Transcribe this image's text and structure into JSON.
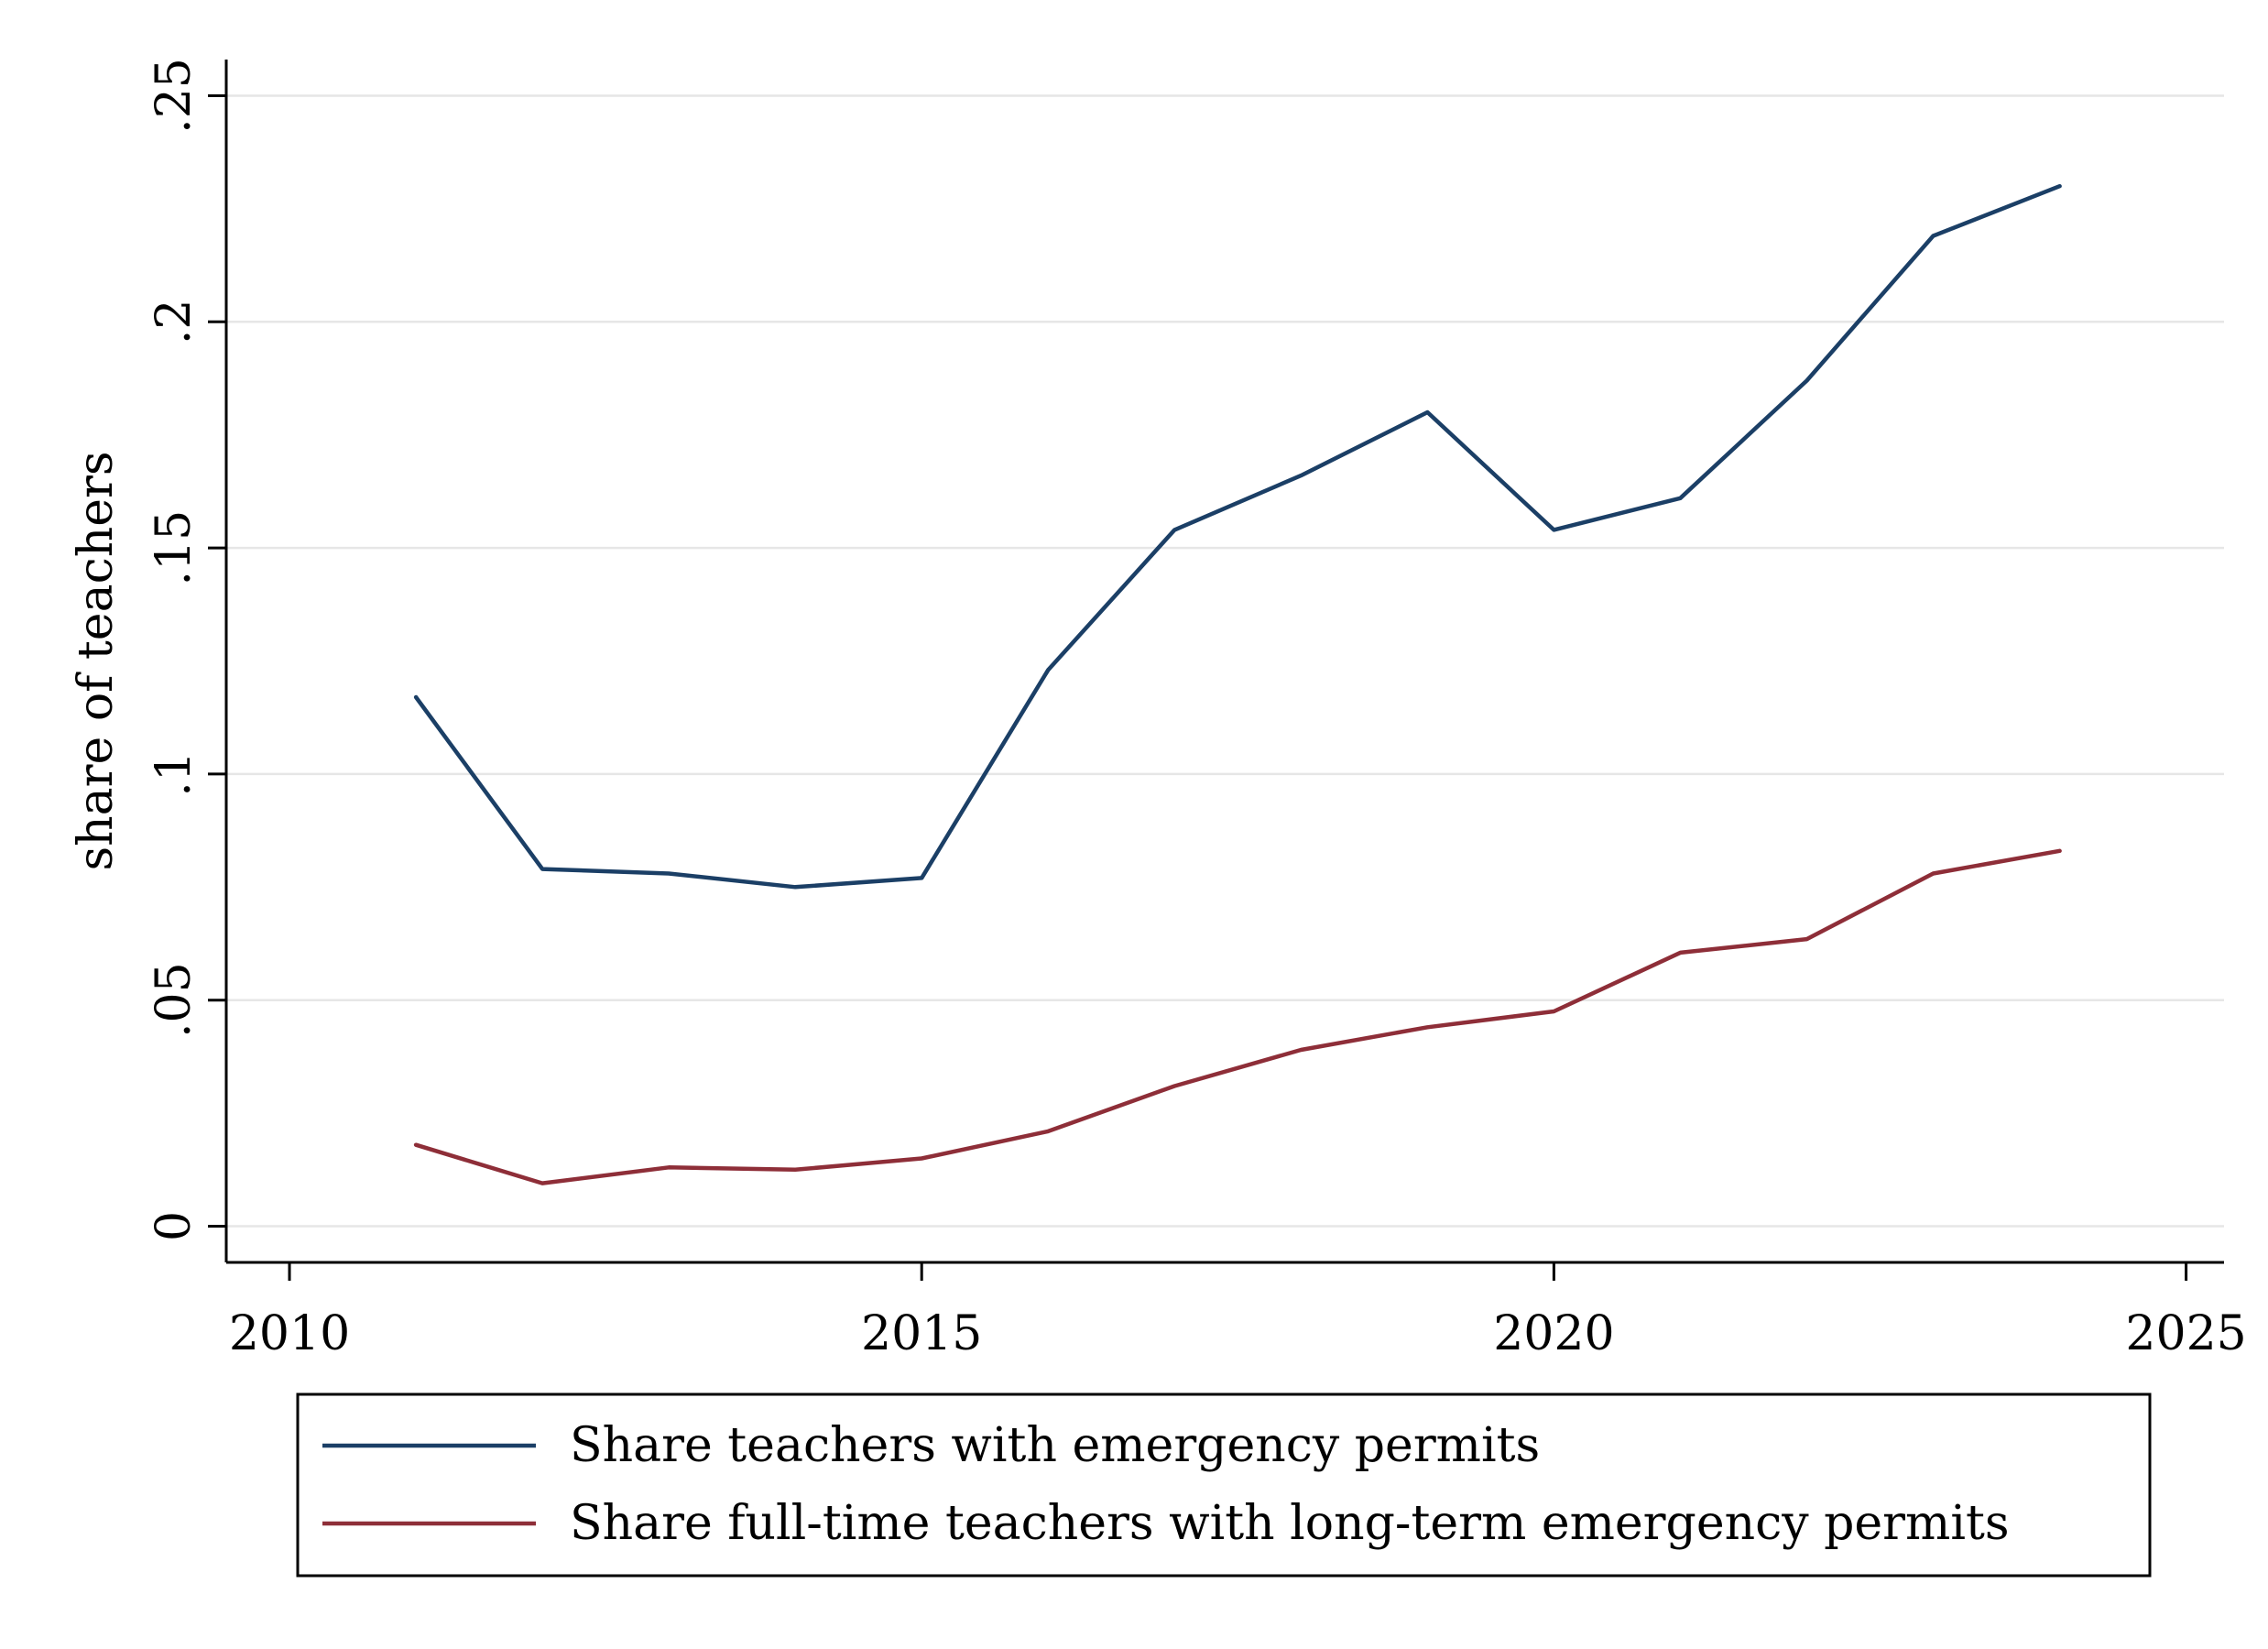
{
  "chart_data": {
    "type": "line",
    "title": "",
    "xlabel": "",
    "ylabel": "share of teachers",
    "xlim": [
      2009.5,
      2025.3
    ],
    "ylim": [
      -0.008,
      0.258
    ],
    "x_ticks": [
      2010,
      2015,
      2020,
      2025
    ],
    "x_tick_labels": [
      "2010",
      "2015",
      "2020",
      "2025"
    ],
    "y_ticks": [
      0,
      0.05,
      0.1,
      0.15,
      0.2,
      0.25
    ],
    "y_tick_labels": [
      "0",
      ".05",
      ".1",
      ".15",
      ".2",
      ".25"
    ],
    "grid": "horizontal",
    "legend_position": "bottom",
    "x": [
      2011,
      2012,
      2013,
      2014,
      2015,
      2016,
      2017,
      2018,
      2019,
      2020,
      2021,
      2022,
      2023,
      2024
    ],
    "series": [
      {
        "name": "Share teachers with emergency permits",
        "color": "#1b3f66",
        "values": [
          0.117,
          0.079,
          0.078,
          0.075,
          0.077,
          0.123,
          0.154,
          0.166,
          0.18,
          0.154,
          0.161,
          0.187,
          0.219,
          0.23
        ]
      },
      {
        "name": "Share full-time teachers with long-term emergency permits",
        "color": "#8e2e38",
        "values": [
          0.018,
          0.0095,
          0.013,
          0.0125,
          0.015,
          0.021,
          0.031,
          0.039,
          0.044,
          0.0475,
          0.0605,
          0.0635,
          0.078,
          0.083
        ]
      }
    ]
  }
}
